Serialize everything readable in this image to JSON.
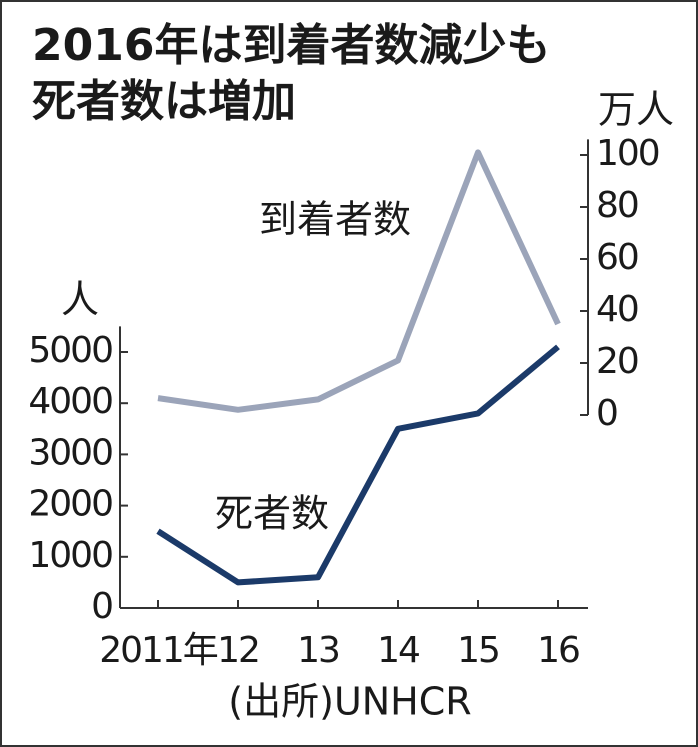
{
  "chart_data": {
    "type": "line",
    "title": [
      "2016年は到着者数減少も",
      "死者数は増加"
    ],
    "categories": [
      "2011年",
      "12",
      "13",
      "14",
      "15",
      "16"
    ],
    "series": [
      {
        "name": "到着者数",
        "color": "#9ba4b9",
        "axis": "y2",
        "values": [
          6.5,
          2,
          6,
          21,
          101,
          35
        ]
      },
      {
        "name": "死者数",
        "color": "#1b3a69",
        "values": [
          1500,
          500,
          600,
          3500,
          3800,
          5100
        ]
      }
    ],
    "ylabel": "人",
    "y2label": "万人",
    "ylim": [
      0,
      5500
    ],
    "yticks": [
      0,
      1000,
      2000,
      3000,
      4000,
      5000
    ],
    "y2lim": [
      0,
      106
    ],
    "y2ticks": [
      0,
      20,
      40,
      60,
      80,
      100
    ],
    "source": "(出所)UNHCR"
  }
}
